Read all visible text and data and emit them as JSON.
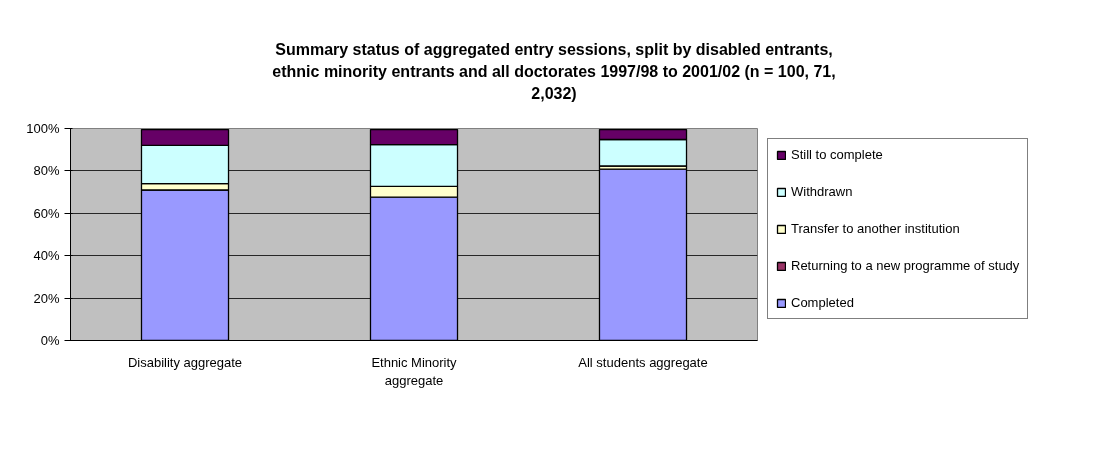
{
  "chart_data": {
    "type": "bar",
    "stacked": true,
    "title": "Summary status of aggregated entry sessions, split by disabled entrants, ethnic minority entrants and all doctorates 1997/98 to 2001/02 (n = 100, 71, 2,032)",
    "categories": [
      "Disability aggregate",
      "Ethnic Minority aggregate",
      "All students aggregate"
    ],
    "series": [
      {
        "name": "Completed",
        "color": "#9999ff",
        "values": [
          71,
          67.6,
          80.8
        ]
      },
      {
        "name": "Returning to a new programme of study",
        "color": "#993366",
        "values": [
          null,
          null,
          null
        ]
      },
      {
        "name": "Transfer to another institution",
        "color": "#ffffcc",
        "values": [
          3,
          5.1,
          1.5
        ]
      },
      {
        "name": "Withdrawn",
        "color": "#ccffff",
        "values": [
          18,
          19.7,
          12.5
        ]
      },
      {
        "name": "Still to complete",
        "color": "#660066",
        "values": [
          7.5,
          7.1,
          4.7
        ]
      }
    ],
    "ylim": [
      0,
      100
    ],
    "yticks": [
      {
        "value": 0,
        "label": "0%"
      },
      {
        "value": 20,
        "label": "20%"
      },
      {
        "value": 40,
        "label": "40%"
      },
      {
        "value": 60,
        "label": "60%"
      },
      {
        "value": 80,
        "label": "80%"
      },
      {
        "value": 100,
        "label": "100%"
      }
    ],
    "grid": "y",
    "legend": "right"
  }
}
